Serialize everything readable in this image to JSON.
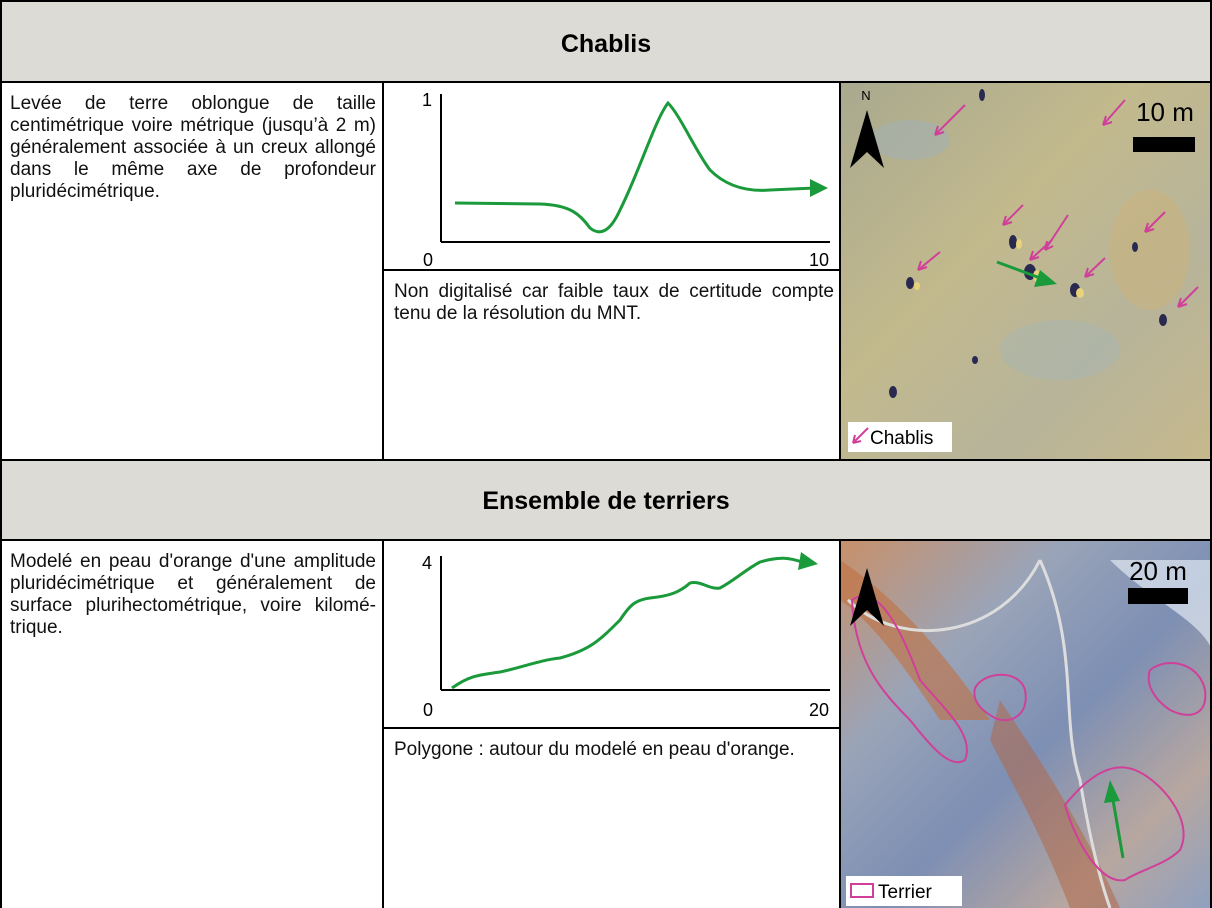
{
  "sections": [
    {
      "title": "Chablis",
      "description": "Levée de terre oblongue de taille centimétrique voire métrique (jusqu’à 2 m) généralement associée à un creux allongé dans le même axe de profondeur pluridécimétrique.",
      "profile": {
        "y_max": 1,
        "x_min": 0,
        "x_max": 10
      },
      "note": "Non digitalisé car faible taux de certitude compte tenu de la résolution du MNT.",
      "map": {
        "north": "N",
        "scale": "10 m",
        "legend": "Chablis"
      }
    },
    {
      "title": "Ensemble de terriers",
      "description": "Modelé en peau d'orange d'une amplitude pluridécimétrique et généralement de surface plurihectométrique, voire kilomé-trique.",
      "profile": {
        "y_max": 4,
        "x_min": 0,
        "x_max": 20
      },
      "note": "Polygone : autour du modelé en peau d'orange.",
      "map": {
        "scale": "20 m",
        "legend": "Terrier"
      }
    }
  ]
}
